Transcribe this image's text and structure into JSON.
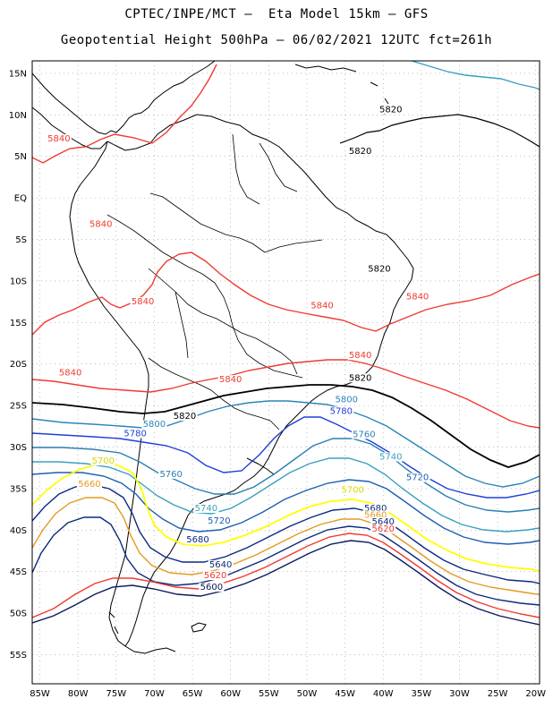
{
  "header": {
    "line1": "CPTEC/INPE/MCT –  Eta Model 15km – GFS",
    "line2": "Geopotential Height 500hPa – 06/02/2021 12UTC fct=261h"
  },
  "axes": {
    "lat_labels": [
      "15N",
      "10N",
      "5N",
      "EQ",
      "5S",
      "10S",
      "15S",
      "20S",
      "25S",
      "30S",
      "35S",
      "40S",
      "45S",
      "50S",
      "55S"
    ],
    "lon_labels": [
      "85W",
      "80W",
      "75W",
      "70W",
      "65W",
      "60W",
      "55W",
      "50W",
      "45W",
      "40W",
      "35W",
      "30W",
      "25W",
      "20W"
    ],
    "lat_values": [
      15,
      10,
      5,
      0,
      -5,
      -10,
      -15,
      -20,
      -25,
      -30,
      -35,
      -40,
      -45,
      -50,
      -55
    ],
    "lon_values": [
      -85,
      -80,
      -75,
      -70,
      -65,
      -60,
      -55,
      -50,
      -45,
      -40,
      -35,
      -30,
      -25,
      -20
    ],
    "grid": true
  },
  "contours": [
    {
      "value": "5840",
      "color": "#ee3b32"
    },
    {
      "value": "5820",
      "color": "#000000"
    },
    {
      "value": "5800",
      "color": "#2a86b6"
    },
    {
      "value": "5780",
      "color": "#1f3fd8"
    },
    {
      "value": "5760",
      "color": "#2b7fb0"
    },
    {
      "value": "5740",
      "color": "#3aa0c0"
    },
    {
      "value": "5720",
      "color": "#1d5fb0"
    },
    {
      "value": "5700",
      "color": "#ffff00"
    },
    {
      "value": "5680",
      "color": "#0d2a80"
    },
    {
      "value": "5660",
      "color": "#e59a20"
    },
    {
      "value": "5640",
      "color": "#0b2b7a"
    },
    {
      "value": "5620",
      "color": "#ee3b32"
    },
    {
      "value": "5600",
      "color": "#0a1a5c"
    }
  ],
  "labels": [
    {
      "text": "5840",
      "color": "#ee3b32",
      "lon": -71.5,
      "lat": -12.8
    },
    {
      "text": "5840",
      "color": "#ee3b32",
      "lon": -77,
      "lat": -3.5
    },
    {
      "text": "5840",
      "color": "#ee3b32",
      "lon": -82.5,
      "lat": 6.8
    },
    {
      "text": "5840",
      "color": "#ee3b32",
      "lon": -48,
      "lat": -13.3
    },
    {
      "text": "5840",
      "color": "#ee3b32",
      "lon": -35.5,
      "lat": -12.2
    },
    {
      "text": "5840",
      "color": "#ee3b32",
      "lon": -43,
      "lat": -19.3
    },
    {
      "text": "5840",
      "color": "#ee3b32",
      "lon": -81,
      "lat": -21.4
    },
    {
      "text": "5840",
      "color": "#ee3b32",
      "lon": -60,
      "lat": -22.2
    },
    {
      "text": "5820",
      "color": "#000000",
      "lon": -39,
      "lat": 10.3
    },
    {
      "text": "5820",
      "color": "#000000",
      "lon": -43,
      "lat": 5.3
    },
    {
      "text": "5820",
      "color": "#000000",
      "lon": -40.5,
      "lat": -8.9
    },
    {
      "text": "5820",
      "color": "#000000",
      "lon": -43,
      "lat": -22
    },
    {
      "text": "5820",
      "color": "#000000",
      "lon": -66,
      "lat": -26.6
    },
    {
      "text": "5800",
      "color": "#2a86b6",
      "lon": -44.8,
      "lat": -24.6
    },
    {
      "text": "5800",
      "color": "#2a86b6",
      "lon": -70,
      "lat": -27.6
    },
    {
      "text": "5780",
      "color": "#1f3fd8",
      "lon": -45.5,
      "lat": -26
    },
    {
      "text": "5780",
      "color": "#1f3fd8",
      "lon": -72.5,
      "lat": -28.7
    },
    {
      "text": "5760",
      "color": "#2b7fb0",
      "lon": -42.5,
      "lat": -28.8
    },
    {
      "text": "5760",
      "color": "#2b7fb0",
      "lon": -67.8,
      "lat": -33.6
    },
    {
      "text": "5740",
      "color": "#3aa0c0",
      "lon": -39,
      "lat": -31.5
    },
    {
      "text": "5740",
      "color": "#3aa0c0",
      "lon": -63.2,
      "lat": -37.7
    },
    {
      "text": "5720",
      "color": "#1d5fb0",
      "lon": -35.5,
      "lat": -34
    },
    {
      "text": "5720",
      "color": "#1d5fb0",
      "lon": -61.5,
      "lat": -39.2
    },
    {
      "text": "5700",
      "color": "#ffff00",
      "lon": -76.7,
      "lat": -32
    },
    {
      "text": "5700",
      "color": "#ffff00",
      "lon": -44,
      "lat": -35.5
    },
    {
      "text": "5680",
      "color": "#0d2a80",
      "lon": -64.3,
      "lat": -41.5
    },
    {
      "text": "5680",
      "color": "#0d2a80",
      "lon": -41,
      "lat": -37.7
    },
    {
      "text": "5660",
      "color": "#e59a20",
      "lon": -78.5,
      "lat": -34.8
    },
    {
      "text": "5660",
      "color": "#e59a20",
      "lon": -41,
      "lat": -38.5
    },
    {
      "text": "5640",
      "color": "#0b2b7a",
      "lon": -61.3,
      "lat": -44.5
    },
    {
      "text": "5640",
      "color": "#0b2b7a",
      "lon": -40,
      "lat": -39.3
    },
    {
      "text": "5620",
      "color": "#ee3b32",
      "lon": -62,
      "lat": -45.8
    },
    {
      "text": "5620",
      "color": "#ee3b32",
      "lon": -40,
      "lat": -40.2
    },
    {
      "text": "5600",
      "color": "#0a1a5c",
      "lon": -62.5,
      "lat": -47.2
    }
  ]
}
